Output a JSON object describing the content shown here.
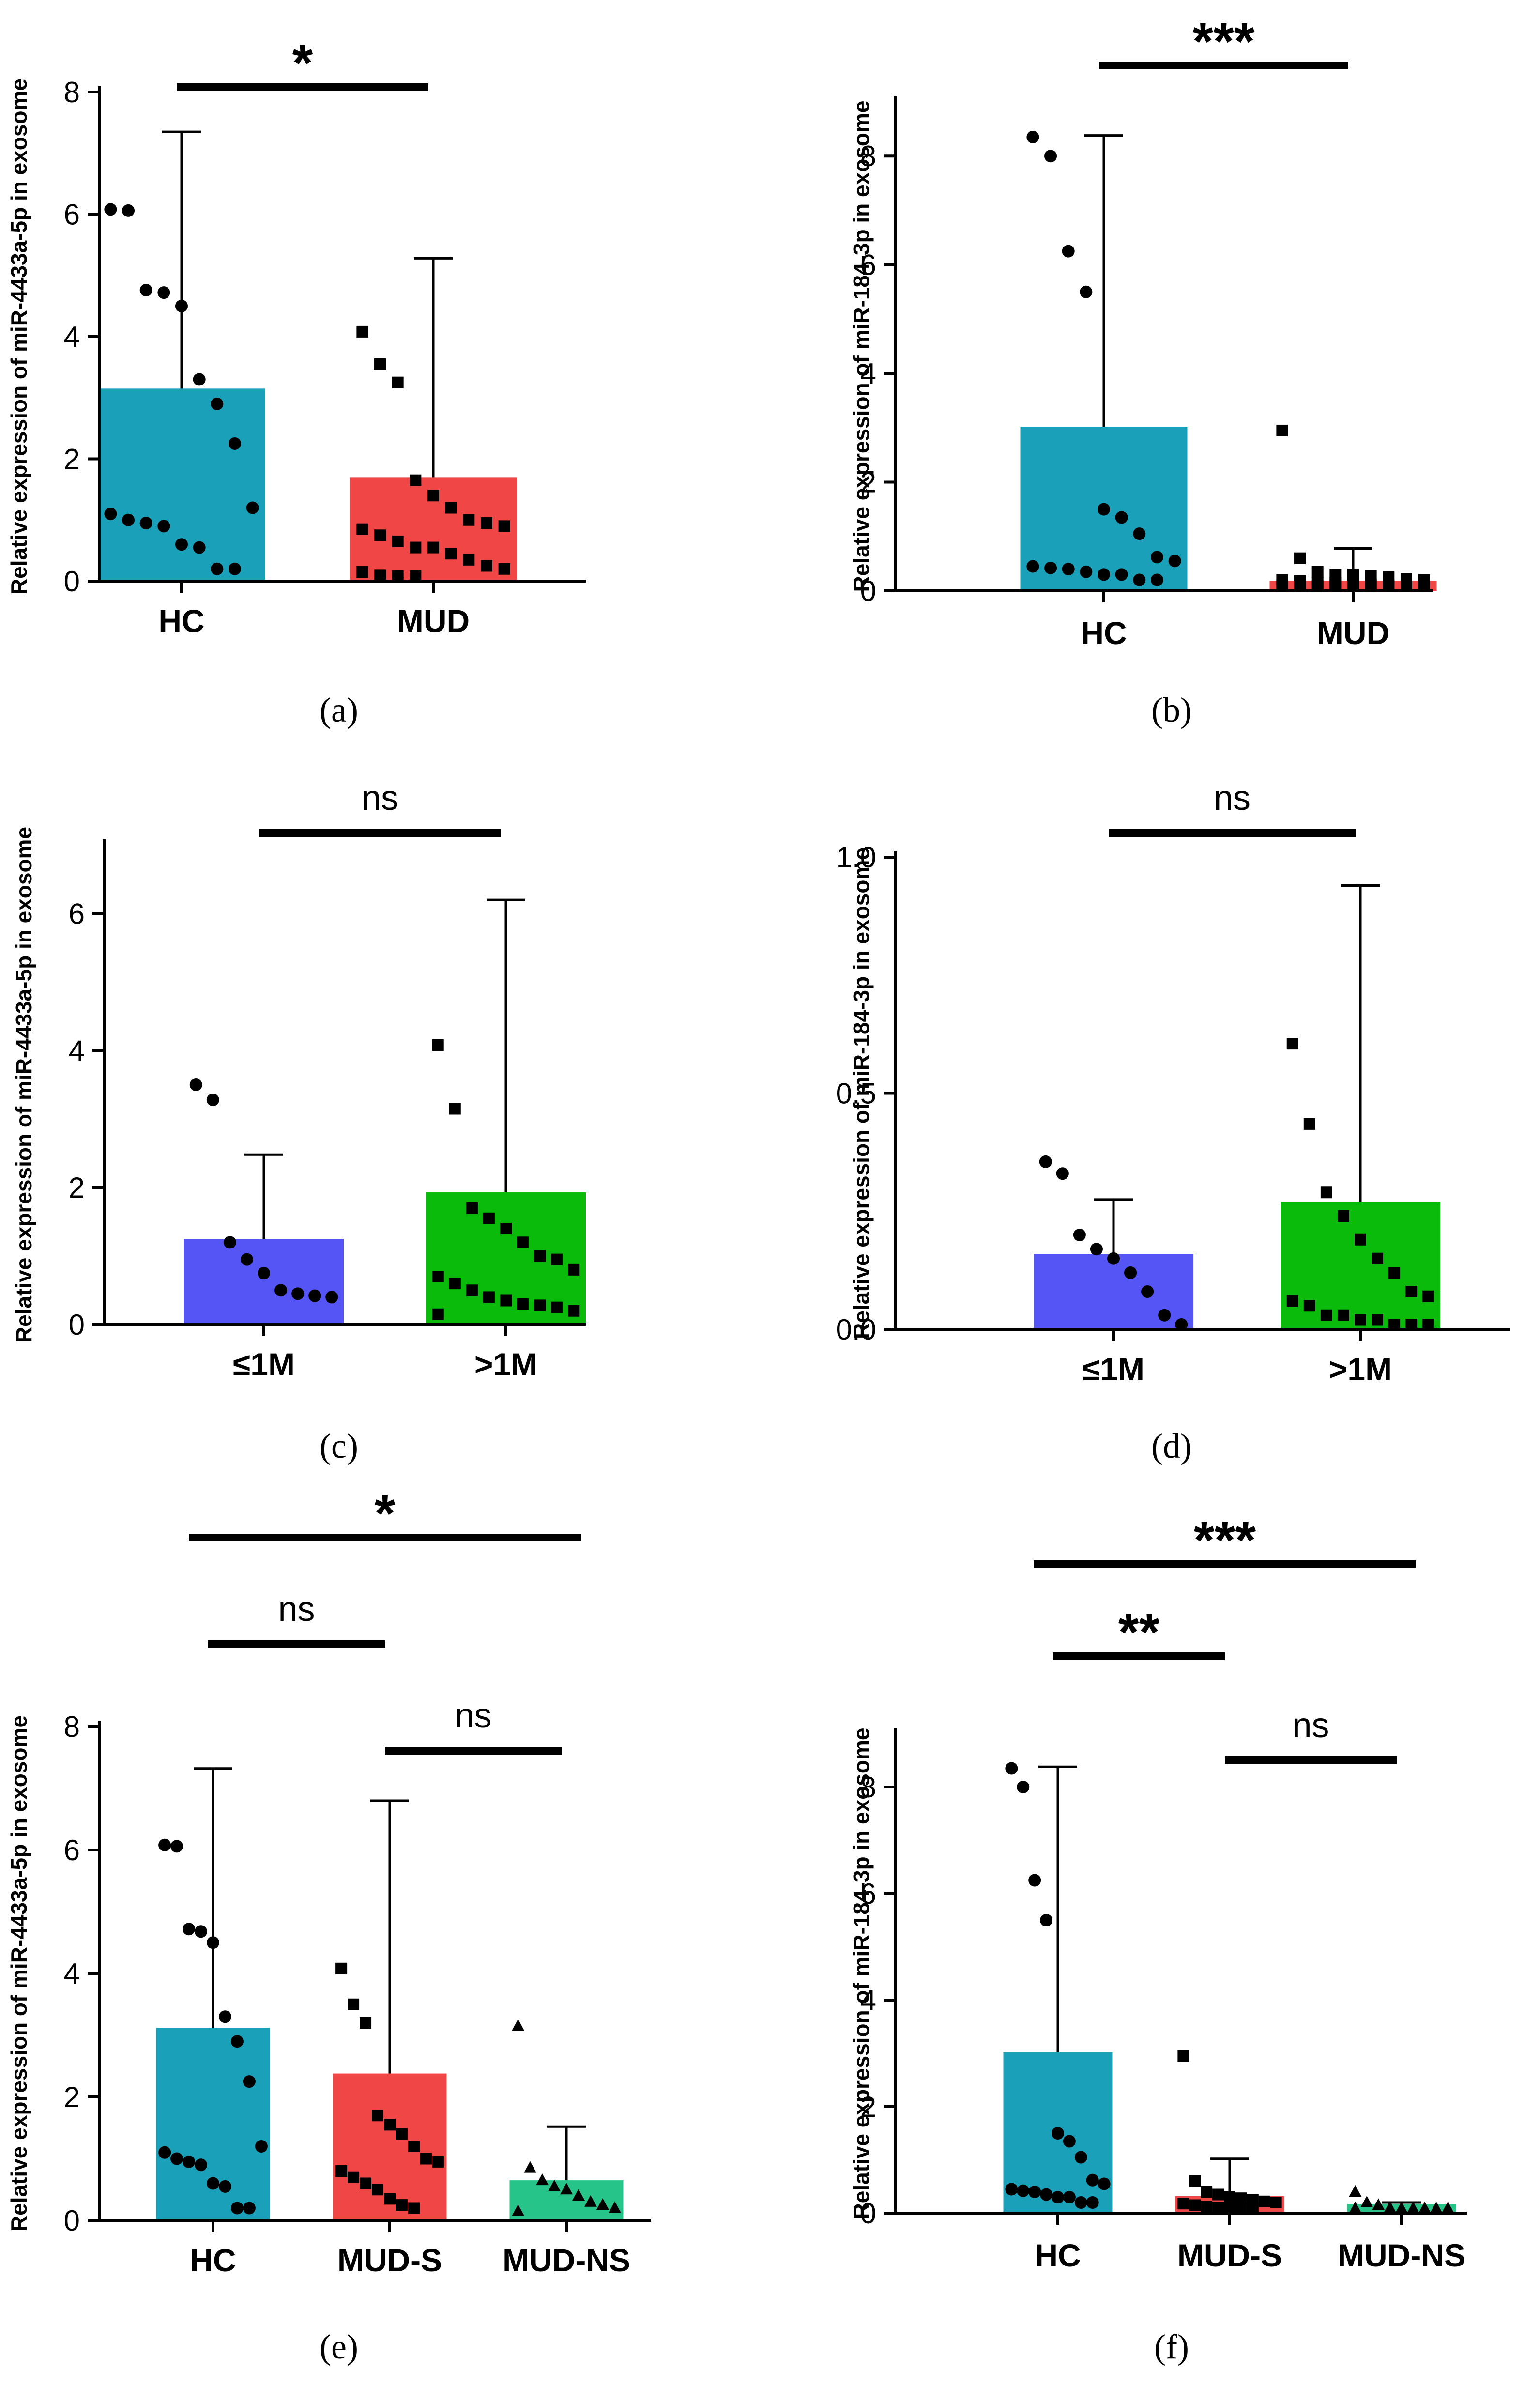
{
  "chart_data": [
    {
      "type": "bar",
      "id": "a",
      "panel_label": "(a)",
      "ylabel": "Relative expression of  miR-4433a-5p in exosome",
      "ylim": [
        0,
        8
      ],
      "yticks": [
        "0",
        "2",
        "4",
        "6",
        "8"
      ],
      "categories": [
        "HC",
        "MUD"
      ],
      "values": [
        3.15,
        1.7
      ],
      "error_upper": [
        7.35,
        5.28
      ],
      "colors": [
        "#1aa0b8",
        "#f04646"
      ],
      "markers": [
        "circle",
        "square"
      ],
      "points": [
        [
          6.08,
          6.06,
          4.76,
          4.72,
          4.5,
          3.3,
          2.9,
          2.25,
          1.2,
          1.1,
          1.0,
          0.95,
          0.9,
          0.6,
          0.55,
          0.2,
          0.2
        ],
        [
          4.08,
          3.55,
          3.25,
          1.65,
          1.4,
          1.2,
          1.0,
          0.95,
          0.9,
          0.85,
          0.75,
          0.65,
          0.55,
          0.55,
          0.45,
          0.35,
          0.25,
          0.2,
          0.15,
          0.1,
          0.08,
          0.05
        ]
      ],
      "significance": [
        {
          "from": 0,
          "to": 1,
          "label": "*"
        }
      ]
    },
    {
      "type": "bar",
      "id": "b",
      "panel_label": "(b)",
      "ylabel": "Relative expression of  miR-184-3p in exosome",
      "ylim": [
        0,
        9
      ],
      "yticks": [
        "0",
        "2",
        "4",
        "6",
        "8"
      ],
      "categories": [
        "HC",
        "MUD"
      ],
      "values": [
        3.02,
        0.18
      ],
      "error_upper": [
        8.38,
        0.78
      ],
      "colors": [
        "#1aa0b8",
        "#f04646"
      ],
      "markers": [
        "circle",
        "square"
      ],
      "points": [
        [
          8.35,
          8.0,
          6.25,
          5.5,
          1.5,
          1.35,
          1.05,
          0.62,
          0.55,
          0.45,
          0.42,
          0.4,
          0.35,
          0.3,
          0.3,
          0.2,
          0.2
        ],
        [
          2.95,
          0.6,
          0.35,
          0.3,
          0.3,
          0.28,
          0.25,
          0.22,
          0.2,
          0.2,
          0.18,
          0.15,
          0.15,
          0.12,
          0.12,
          0.1,
          0.1,
          0.08,
          0.08,
          0.06,
          0.05,
          0.05,
          0.04,
          0.03,
          0.02
        ]
      ],
      "significance": [
        {
          "from": 0,
          "to": 1,
          "label": "***"
        }
      ]
    },
    {
      "type": "bar",
      "id": "c",
      "panel_label": "(c)",
      "ylabel": "Relative expression of  miR-4433a-5p in exosome",
      "ylim": [
        0,
        7
      ],
      "yticks": [
        "0",
        "2",
        "4",
        "6"
      ],
      "categories": [
        "≤1M",
        ">1M"
      ],
      "values": [
        1.25,
        1.93
      ],
      "error_upper": [
        2.48,
        6.2
      ],
      "colors": [
        "#5555f5",
        "#0bbb0b"
      ],
      "markers": [
        "circle",
        "square"
      ],
      "points": [
        [
          3.5,
          3.28,
          1.2,
          0.95,
          0.75,
          0.5,
          0.45,
          0.42,
          0.4
        ],
        [
          4.08,
          3.15,
          1.7,
          1.55,
          1.4,
          1.2,
          1.0,
          0.95,
          0.8,
          0.7,
          0.6,
          0.5,
          0.4,
          0.35,
          0.3,
          0.28,
          0.25,
          0.2,
          0.15
        ]
      ],
      "significance": [
        {
          "from": 0,
          "to": 1,
          "label": "ns"
        }
      ]
    },
    {
      "type": "bar",
      "id": "d",
      "panel_label": "(d)",
      "ylabel": "Relative expression of  miR-184-3p in exosome",
      "ylim": [
        0,
        1.0
      ],
      "yticks": [
        "0.0",
        "0.5",
        "1.0"
      ],
      "categories": [
        "≤1M",
        ">1M"
      ],
      "values": [
        0.16,
        0.27
      ],
      "error_upper": [
        0.275,
        0.94
      ],
      "colors": [
        "#5555f5",
        "#0bbb0b"
      ],
      "markers": [
        "circle",
        "square"
      ],
      "points": [
        [
          0.355,
          0.33,
          0.2,
          0.17,
          0.15,
          0.12,
          0.08,
          0.03,
          0.01
        ],
        [
          0.605,
          0.435,
          0.29,
          0.24,
          0.19,
          0.15,
          0.12,
          0.08,
          0.07,
          0.06,
          0.05,
          0.03,
          0.03,
          0.02,
          0.02,
          0.01,
          0.01,
          0.01
        ]
      ],
      "significance": [
        {
          "from": 0,
          "to": 1,
          "label": "ns"
        }
      ]
    },
    {
      "type": "bar",
      "id": "e",
      "panel_label": "(e)",
      "ylabel": "Relative expression of  miR-4433a-5p in exosome",
      "ylim": [
        0,
        8
      ],
      "yticks": [
        "0",
        "2",
        "4",
        "6",
        "8"
      ],
      "categories": [
        "HC",
        "MUD-S",
        "MUD-NS"
      ],
      "values": [
        3.12,
        2.38,
        0.65
      ],
      "error_upper": [
        7.32,
        6.8,
        1.52
      ],
      "colors": [
        "#1aa0b8",
        "#f04646",
        "#27c48a"
      ],
      "markers": [
        "circle",
        "square",
        "triangle"
      ],
      "points": [
        [
          6.08,
          6.06,
          4.72,
          4.68,
          4.5,
          3.3,
          2.9,
          2.25,
          1.2,
          1.1,
          1.0,
          0.95,
          0.9,
          0.6,
          0.55,
          0.2,
          0.2
        ],
        [
          4.08,
          3.5,
          3.2,
          1.7,
          1.55,
          1.4,
          1.2,
          1.0,
          0.95,
          0.8,
          0.7,
          0.6,
          0.5,
          0.35,
          0.25,
          0.2
        ],
        [
          3.15,
          0.85,
          0.65,
          0.55,
          0.5,
          0.4,
          0.3,
          0.25,
          0.2,
          0.15
        ]
      ],
      "significance": [
        {
          "from": 0,
          "to": 2,
          "label": "*"
        },
        {
          "from": 0,
          "to": 1,
          "label": "ns"
        },
        {
          "from": 1,
          "to": 2,
          "label": "ns"
        }
      ]
    },
    {
      "type": "bar",
      "id": "f",
      "panel_label": "(f)",
      "ylabel": "Relative expression of  miR-184-3p in exosome",
      "ylim": [
        0,
        9
      ],
      "yticks": [
        "0",
        "2",
        "4",
        "6",
        "8"
      ],
      "categories": [
        "HC",
        "MUD-S",
        "MUD-NS"
      ],
      "values": [
        3.02,
        0.32,
        0.17
      ],
      "error_upper": [
        8.38,
        1.02,
        0.2
      ],
      "colors": [
        "#1aa0b8",
        "#f04646",
        "#27c48a"
      ],
      "markers": [
        "circle",
        "square",
        "triangle"
      ],
      "points": [
        [
          8.35,
          8.0,
          6.25,
          5.5,
          1.5,
          1.35,
          1.05,
          0.62,
          0.55,
          0.45,
          0.42,
          0.4,
          0.35,
          0.3,
          0.3,
          0.2,
          0.2
        ],
        [
          2.95,
          0.6,
          0.4,
          0.35,
          0.3,
          0.28,
          0.25,
          0.22,
          0.2,
          0.18,
          0.15,
          0.12,
          0.1,
          0.08,
          0.05,
          0.03
        ],
        [
          0.4,
          0.2,
          0.15,
          0.1,
          0.08,
          0.06,
          0.05,
          0.04,
          0.03,
          0.02
        ]
      ],
      "significance": [
        {
          "from": 0,
          "to": 2,
          "label": "***"
        },
        {
          "from": 0,
          "to": 1,
          "label": "**"
        },
        {
          "from": 1,
          "to": 2,
          "label": "ns"
        }
      ]
    }
  ]
}
